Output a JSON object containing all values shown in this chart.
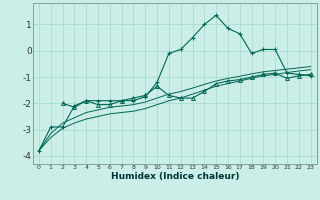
{
  "title": "",
  "xlabel": "Humidex (Indice chaleur)",
  "ylabel": "",
  "bg_color": "#cceee8",
  "grid_color": "#aaddcc",
  "line_color": "#006655",
  "xlim": [
    -0.5,
    23.5
  ],
  "ylim": [
    -4.3,
    1.8
  ],
  "xticks": [
    0,
    1,
    2,
    3,
    4,
    5,
    6,
    7,
    8,
    9,
    10,
    11,
    12,
    13,
    14,
    15,
    16,
    17,
    18,
    19,
    20,
    21,
    22,
    23
  ],
  "yticks": [
    -4,
    -3,
    -2,
    -1,
    0,
    1
  ],
  "line1_x": [
    0,
    1,
    2,
    3,
    4,
    5,
    6,
    7,
    8,
    9,
    10,
    11,
    12,
    13,
    14,
    15,
    16,
    17,
    18,
    19,
    20,
    21,
    22,
    23
  ],
  "line1_y": [
    -3.8,
    -2.9,
    -2.9,
    -2.1,
    -1.9,
    -1.9,
    -1.9,
    -1.9,
    -1.9,
    -1.75,
    -1.2,
    -0.1,
    0.05,
    0.5,
    1.0,
    1.35,
    0.85,
    0.65,
    -0.1,
    0.05,
    0.05,
    -0.85,
    -0.9,
    -0.95
  ],
  "line2_x": [
    0,
    1,
    2,
    3,
    4,
    5,
    6,
    7,
    8,
    9,
    10,
    11,
    12,
    13,
    14,
    15,
    16,
    17,
    18,
    19,
    20,
    21,
    22,
    23
  ],
  "line2_y": [
    -3.8,
    -3.3,
    -2.95,
    -2.75,
    -2.6,
    -2.5,
    -2.4,
    -2.35,
    -2.3,
    -2.2,
    -2.05,
    -1.9,
    -1.8,
    -1.65,
    -1.5,
    -1.35,
    -1.25,
    -1.15,
    -1.05,
    -0.95,
    -0.9,
    -0.83,
    -0.77,
    -0.72
  ],
  "line3_x": [
    0,
    1,
    2,
    3,
    4,
    5,
    6,
    7,
    8,
    9,
    10,
    11,
    12,
    13,
    14,
    15,
    16,
    17,
    18,
    19,
    20,
    21,
    22,
    23
  ],
  "line3_y": [
    -3.8,
    -3.15,
    -2.75,
    -2.55,
    -2.35,
    -2.25,
    -2.15,
    -2.1,
    -2.05,
    -1.95,
    -1.8,
    -1.65,
    -1.55,
    -1.42,
    -1.28,
    -1.15,
    -1.05,
    -0.97,
    -0.88,
    -0.8,
    -0.75,
    -0.7,
    -0.65,
    -0.6
  ],
  "line4_x": [
    2,
    3,
    4,
    5,
    6,
    7,
    8,
    9,
    10,
    11,
    12,
    13,
    14,
    15,
    16,
    17,
    18,
    19,
    20,
    21,
    22,
    23
  ],
  "line4_y": [
    -2.0,
    -2.15,
    -1.9,
    -2.05,
    -2.05,
    -1.9,
    -1.8,
    -1.7,
    -1.35,
    -1.7,
    -1.8,
    -1.8,
    -1.55,
    -1.25,
    -1.15,
    -1.1,
    -1.0,
    -0.9,
    -0.85,
    -1.05,
    -0.95,
    -0.9
  ]
}
